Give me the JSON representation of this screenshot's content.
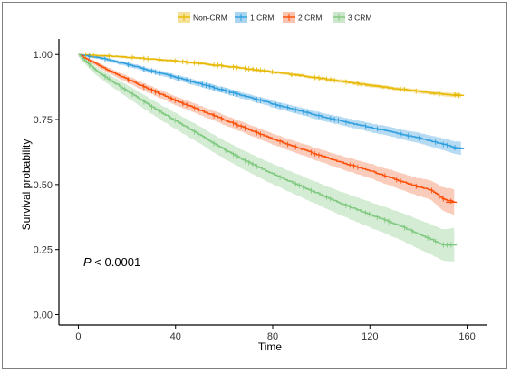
{
  "chart_data": {
    "type": "line",
    "subtype": "kaplan-meier survival curve with confidence bands and censor marks",
    "xlabel": "Time",
    "ylabel": "Survival probability",
    "xlim": [
      -8,
      168
    ],
    "ylim": [
      -0.04,
      1.06
    ],
    "x_ticks": [
      0,
      40,
      80,
      120,
      160
    ],
    "x_tick_labels": [
      "0",
      "40",
      "80",
      "120",
      "160"
    ],
    "y_ticks": [
      0,
      0.25,
      0.5,
      0.75,
      1.0
    ],
    "y_tick_labels": [
      "0.00",
      "0.25",
      "0.50",
      "0.75",
      "1.00"
    ],
    "grid": false,
    "legend_position": "top",
    "annotation": {
      "prefix": "P",
      "rest": " < 0.0001"
    },
    "series": [
      {
        "name": "Non-CRM",
        "color": "#E7B800",
        "band_color": "#F5E29A",
        "x": [
          0,
          10,
          20,
          30,
          40,
          50,
          60,
          70,
          80,
          90,
          100,
          110,
          120,
          130,
          140,
          150,
          158
        ],
        "y": [
          1.0,
          0.995,
          0.99,
          0.983,
          0.975,
          0.966,
          0.956,
          0.945,
          0.933,
          0.921,
          0.908,
          0.895,
          0.882,
          0.87,
          0.858,
          0.847,
          0.843
        ],
        "band": [
          0.004,
          0.004,
          0.004,
          0.004,
          0.005,
          0.005,
          0.005,
          0.005,
          0.006,
          0.006,
          0.006,
          0.007,
          0.007,
          0.007,
          0.008,
          0.008,
          0.009
        ]
      },
      {
        "name": "1 CRM",
        "color": "#2E9FDF",
        "band_color": "#A9D5F0",
        "x": [
          0,
          10,
          20,
          30,
          40,
          50,
          60,
          70,
          80,
          90,
          100,
          110,
          120,
          130,
          140,
          145,
          150,
          155,
          158
        ],
        "y": [
          1.0,
          0.985,
          0.962,
          0.937,
          0.913,
          0.888,
          0.862,
          0.836,
          0.81,
          0.786,
          0.762,
          0.74,
          0.72,
          0.7,
          0.68,
          0.668,
          0.655,
          0.642,
          0.638
        ],
        "band": [
          0.003,
          0.006,
          0.008,
          0.009,
          0.01,
          0.011,
          0.012,
          0.012,
          0.013,
          0.014,
          0.015,
          0.016,
          0.017,
          0.018,
          0.02,
          0.021,
          0.023,
          0.024,
          0.026
        ]
      },
      {
        "name": "2 CRM",
        "color": "#FC4E07",
        "band_color": "#F9C3B0",
        "x": [
          0,
          5,
          10,
          20,
          30,
          40,
          50,
          60,
          70,
          80,
          90,
          100,
          110,
          120,
          130,
          140,
          145,
          150,
          155
        ],
        "y": [
          1.0,
          0.975,
          0.95,
          0.905,
          0.863,
          0.823,
          0.786,
          0.749,
          0.712,
          0.675,
          0.642,
          0.61,
          0.58,
          0.553,
          0.522,
          0.49,
          0.48,
          0.445,
          0.432
        ],
        "band": [
          0.005,
          0.008,
          0.01,
          0.013,
          0.015,
          0.017,
          0.018,
          0.019,
          0.02,
          0.021,
          0.022,
          0.024,
          0.026,
          0.028,
          0.031,
          0.034,
          0.037,
          0.045,
          0.05
        ]
      },
      {
        "name": "3 CRM",
        "color": "#7FC97F",
        "band_color": "#CDE7CD",
        "x": [
          0,
          5,
          10,
          20,
          30,
          40,
          50,
          60,
          70,
          80,
          90,
          100,
          110,
          120,
          130,
          140,
          145,
          150,
          155
        ],
        "y": [
          1.0,
          0.955,
          0.92,
          0.86,
          0.8,
          0.745,
          0.69,
          0.635,
          0.585,
          0.54,
          0.5,
          0.46,
          0.42,
          0.385,
          0.35,
          0.31,
          0.29,
          0.268,
          0.268
        ],
        "band": [
          0.008,
          0.014,
          0.018,
          0.024,
          0.028,
          0.031,
          0.033,
          0.035,
          0.037,
          0.039,
          0.041,
          0.043,
          0.046,
          0.049,
          0.052,
          0.056,
          0.058,
          0.06,
          0.065
        ]
      }
    ]
  }
}
